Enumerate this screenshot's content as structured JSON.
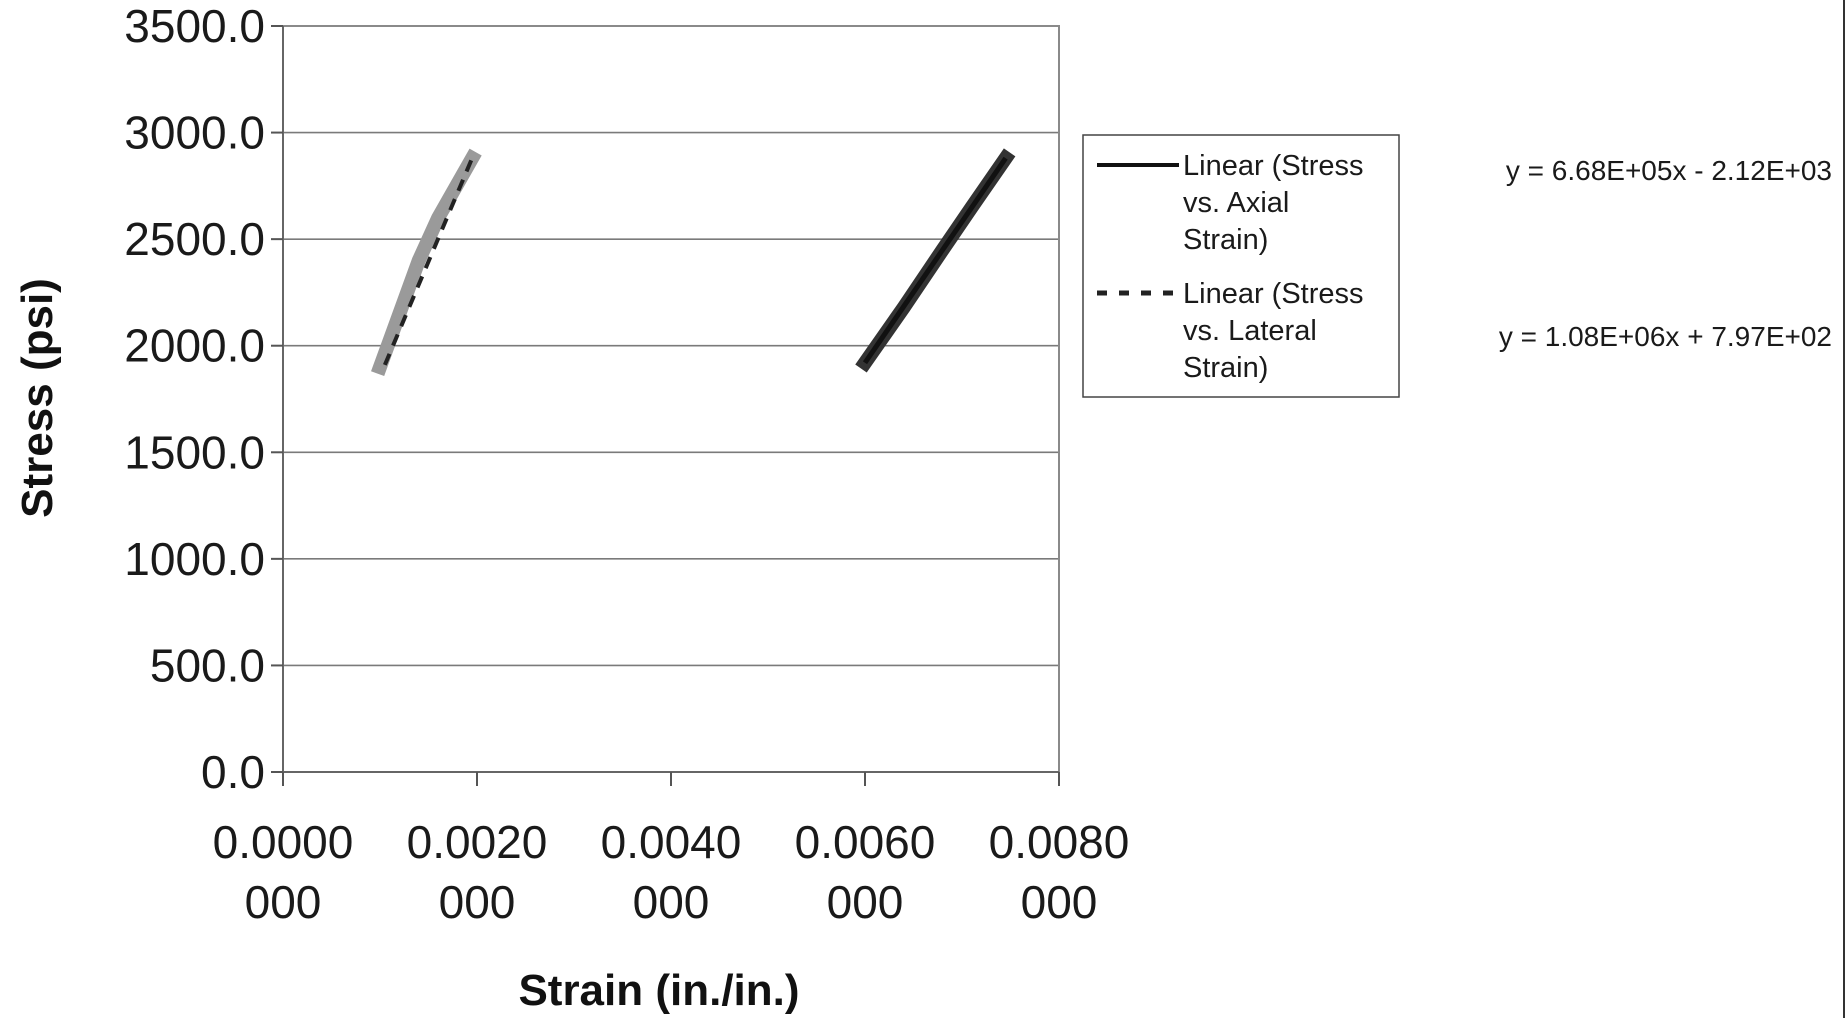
{
  "chart_data": {
    "type": "scatter",
    "title": "",
    "xlabel": "Strain (in./in.)",
    "ylabel": "Stress (psi)",
    "xlim": [
      0,
      0.008
    ],
    "ylim": [
      0,
      3500
    ],
    "x_ticks": [
      0,
      0.002,
      0.004,
      0.006,
      0.008
    ],
    "x_tick_labels": [
      [
        "0.0000",
        "000"
      ],
      [
        "0.0020",
        "000"
      ],
      [
        "0.0040",
        "000"
      ],
      [
        "0.0060",
        "000"
      ],
      [
        "0.0080",
        "000"
      ]
    ],
    "y_ticks": [
      0,
      500,
      1000,
      1500,
      2000,
      2500,
      3000,
      3500
    ],
    "y_tick_labels": [
      "0.0",
      "500.0",
      "1000.0",
      "1500.0",
      "2000.0",
      "2500.0",
      "3000.0",
      "3500.0"
    ],
    "grid": "horizontal",
    "legend_position": "right",
    "series": [
      {
        "kind": "data",
        "color": "#9a9a9a",
        "points": [
          [
            0.001,
            1900
          ],
          [
            0.0012,
            2150
          ],
          [
            0.0014,
            2400
          ],
          [
            0.0016,
            2600
          ],
          [
            0.0018,
            2760
          ],
          [
            0.00195,
            2880
          ]
        ]
      },
      {
        "kind": "data",
        "color": "#333333",
        "points": [
          [
            0.006,
            1920
          ],
          [
            0.0064,
            2180
          ],
          [
            0.0068,
            2450
          ],
          [
            0.0071,
            2650
          ],
          [
            0.00745,
            2880
          ]
        ]
      },
      {
        "kind": "trendline",
        "name": [
          "Linear (Stress",
          "vs. Axial",
          "Strain)"
        ],
        "dash": "solid",
        "color": "#111111",
        "x": [
          0.006,
          0.00745
        ],
        "y": [
          1920,
          2880
        ]
      },
      {
        "kind": "trendline",
        "name": [
          "Linear (Stress",
          "vs. Lateral",
          "Strain)"
        ],
        "dash": "dashed",
        "color": "#222222",
        "x": [
          0.00105,
          0.00195
        ],
        "y": [
          1910,
          2880
        ]
      }
    ],
    "equations": [
      "y = 6.68E+05x - 2.12E+03",
      "y = 1.08E+06x + 7.97E+02"
    ]
  }
}
